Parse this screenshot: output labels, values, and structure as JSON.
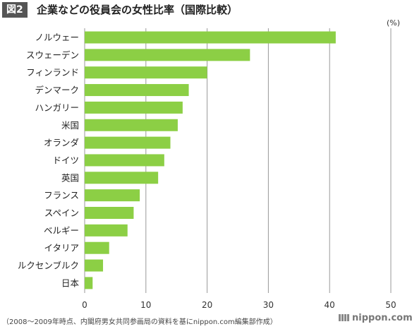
{
  "header": {
    "figure_badge": "図2",
    "title": "企業などの役員会の女性比率（国際比較）",
    "unit": "(%)"
  },
  "footer": {
    "source": "（2008～2009年時点、内閣府男女共同参画局の資料を基にnippon.com編集部作成）",
    "brand": "nippon.com"
  },
  "colors": {
    "bar": "#8ccf45",
    "grid": "#999999"
  },
  "chart_data": {
    "type": "bar",
    "orientation": "horizontal",
    "title": "企業などの役員会の女性比率（国際比較）",
    "xlabel": "",
    "ylabel": "",
    "unit": "(%)",
    "xlim": [
      0,
      50
    ],
    "x_ticks": [
      0,
      10,
      20,
      30,
      40,
      50
    ],
    "grid": true,
    "categories": [
      "ノルウェー",
      "スウェーデン",
      "フィンランド",
      "デンマーク",
      "ハンガリー",
      "米国",
      "オランダ",
      "ドイツ",
      "英国",
      "フランス",
      "スペイン",
      "ベルギー",
      "イタリア",
      "ルクセンブルク",
      "日本"
    ],
    "values": [
      41.0,
      27.0,
      20.0,
      17.0,
      16.0,
      15.2,
      14.0,
      13.0,
      12.0,
      9.0,
      8.0,
      7.0,
      4.0,
      3.0,
      1.3
    ]
  }
}
